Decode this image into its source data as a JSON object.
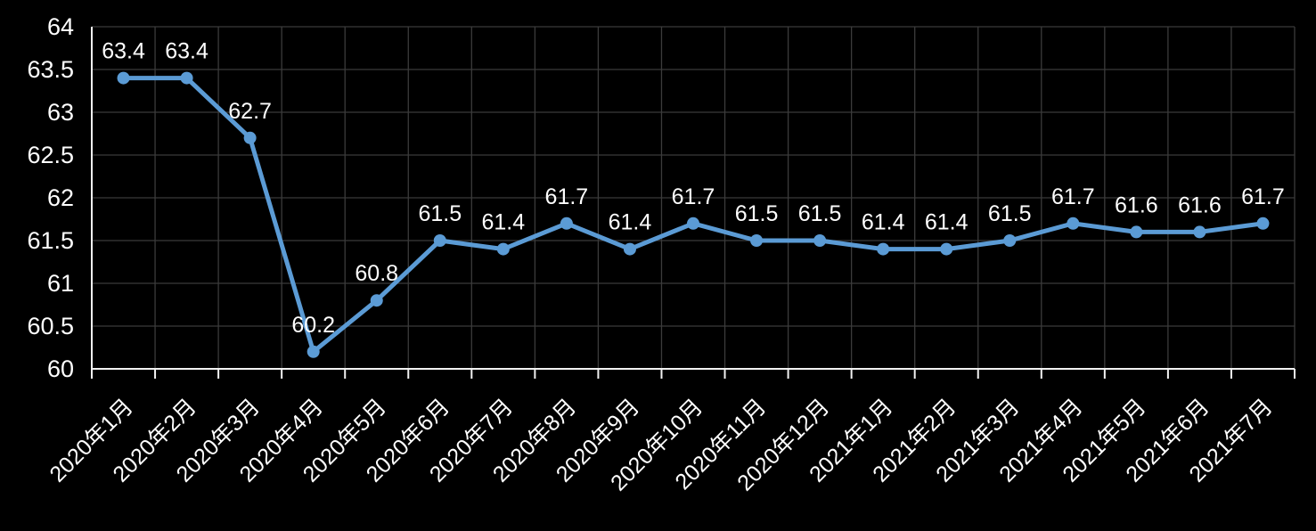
{
  "chart_data": {
    "type": "line",
    "title": "",
    "xlabel": "",
    "ylabel": "",
    "categories": [
      "2020年1月",
      "2020年2月",
      "2020年3月",
      "2020年4月",
      "2020年5月",
      "2020年6月",
      "2020年7月",
      "2020年8月",
      "2020年9月",
      "2020年10月",
      "2020年11月",
      "2020年12月",
      "2021年1月",
      "2021年2月",
      "2021年3月",
      "2021年4月",
      "2021年5月",
      "2021年6月",
      "2021年7月"
    ],
    "series": [
      {
        "name": "",
        "values": [
          63.4,
          63.4,
          62.7,
          60.2,
          60.8,
          61.5,
          61.4,
          61.7,
          61.4,
          61.7,
          61.5,
          61.5,
          61.4,
          61.4,
          61.5,
          61.7,
          61.6,
          61.6,
          61.7
        ]
      }
    ],
    "data_labels": [
      "63.4",
      "63.4",
      "62.7",
      "60.2",
      "60.8",
      "61.5",
      "61.4",
      "61.7",
      "61.4",
      "61.7",
      "61.5",
      "61.5",
      "61.4",
      "61.4",
      "61.5",
      "61.7",
      "61.6",
      "61.6",
      "61.7"
    ],
    "ylim": [
      60,
      64
    ],
    "ytick_step": 0.5,
    "ytick_labels": [
      "60",
      "60.5",
      "61",
      "61.5",
      "62",
      "62.5",
      "63",
      "63.5",
      "64"
    ],
    "grid": true,
    "legend": "none",
    "marker": "circle",
    "x_label_rotation_deg": 45,
    "colors": {
      "background": "#000000",
      "gridline": "#3b3b3b",
      "axis_line": "#f2f2f2",
      "series": "#5b9bd5",
      "label_text": "#ffffff"
    }
  }
}
